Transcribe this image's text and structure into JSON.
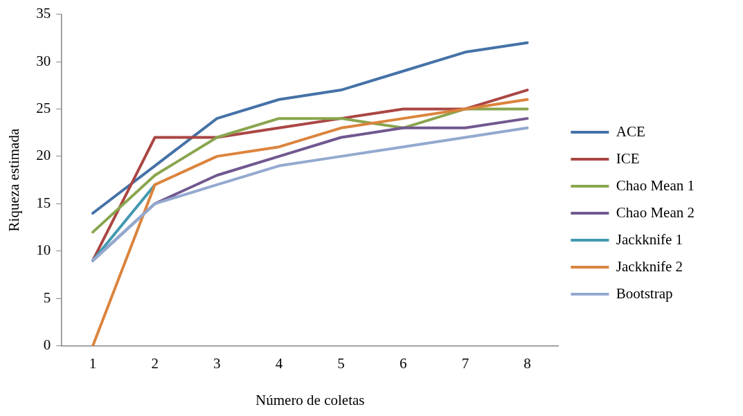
{
  "chart_data": {
    "type": "line",
    "xlabel": "Número de coletas",
    "ylabel": "Riqueza estimada",
    "categories": [
      "1",
      "2",
      "3",
      "4",
      "5",
      "6",
      "7",
      "8"
    ],
    "series": [
      {
        "name": "ACE",
        "color": "#4572a7",
        "values": [
          14,
          19,
          24,
          26,
          27,
          29,
          31,
          32
        ]
      },
      {
        "name": "ICE",
        "color": "#aa4643",
        "values": [
          9,
          22,
          22,
          23,
          24,
          25,
          25,
          27
        ]
      },
      {
        "name": "Chao Mean 1",
        "color": "#89a54e",
        "values": [
          12,
          18,
          22,
          24,
          24,
          23,
          25,
          25
        ]
      },
      {
        "name": "Chao Mean 2",
        "color": "#71588f",
        "values": [
          9,
          15,
          18,
          20,
          22,
          23,
          23,
          24
        ]
      },
      {
        "name": "Jackknife 1",
        "color": "#4198af",
        "values": [
          9,
          17,
          null,
          null,
          null,
          null,
          null,
          null
        ]
      },
      {
        "name": "Jackknife 2",
        "color": "#db843d",
        "values": [
          0,
          17,
          20,
          21,
          23,
          24,
          25,
          26
        ]
      },
      {
        "name": "Bootstrap",
        "color": "#93a9cf",
        "values": [
          9,
          15,
          17,
          19,
          20,
          21,
          22,
          23
        ]
      }
    ],
    "ylim": [
      0,
      35
    ],
    "yticks": [
      0,
      5,
      10,
      15,
      20,
      25,
      30,
      35
    ],
    "grid": false,
    "legend": "right",
    "marker": "none",
    "line_style": "solid"
  }
}
